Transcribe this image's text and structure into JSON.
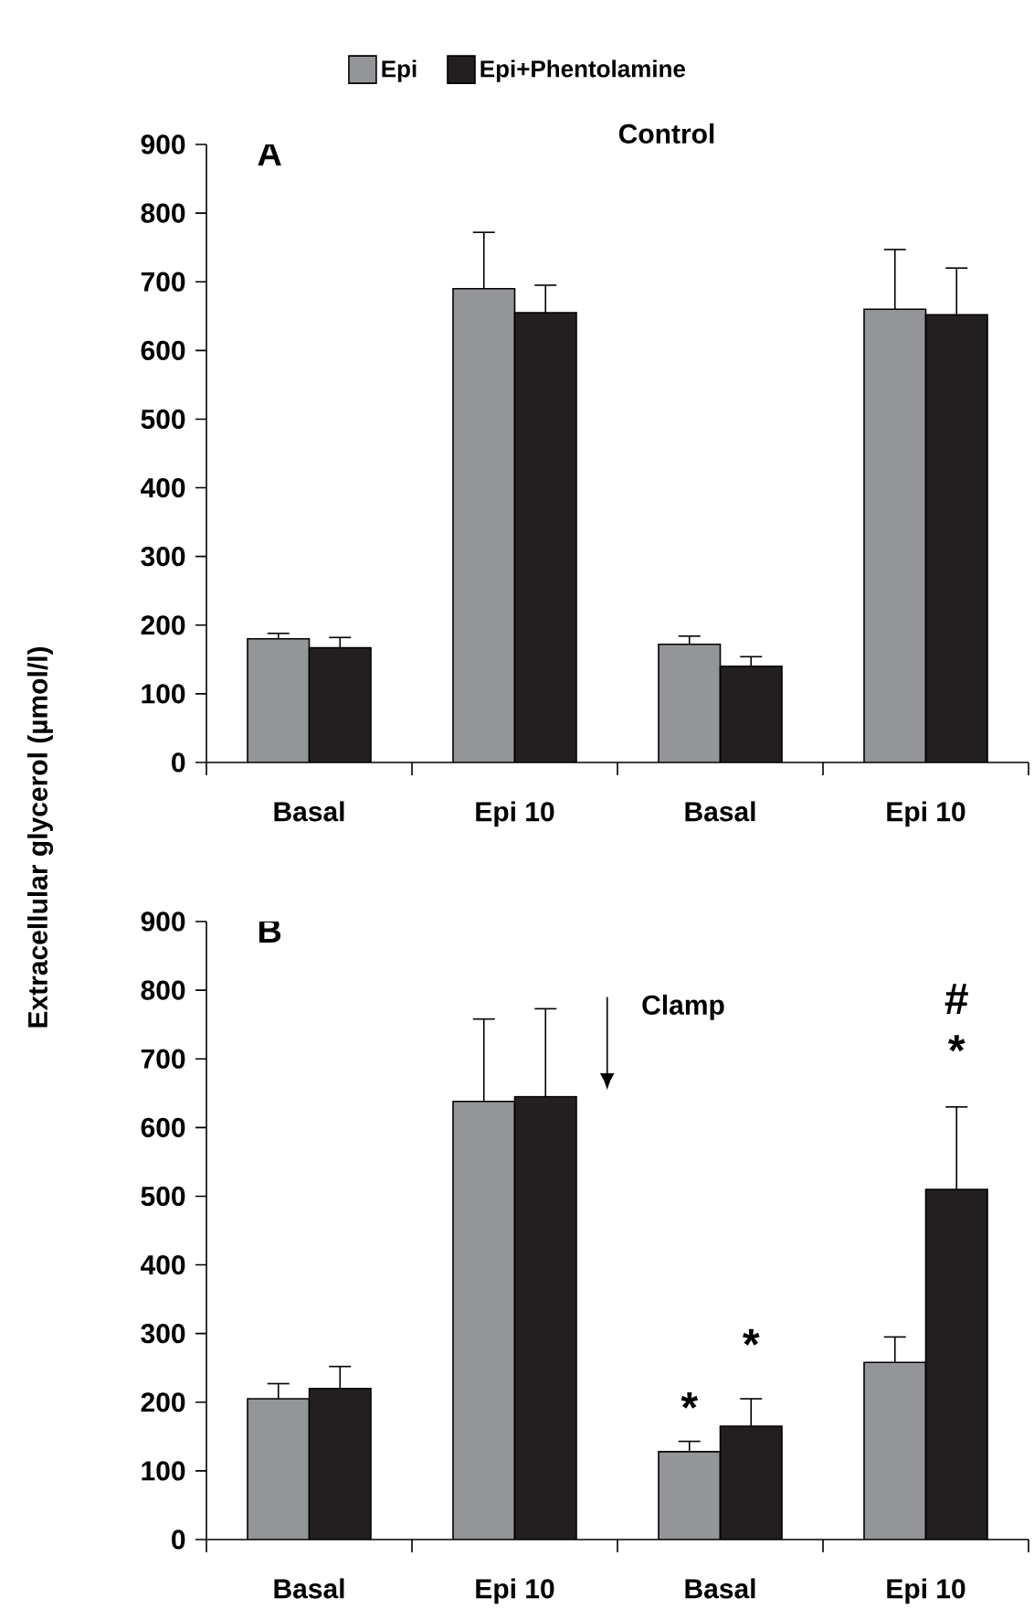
{
  "chart_data": [
    {
      "type": "bar",
      "title": "Control",
      "ylabel": "Extracellular glycerol (µmol/l)",
      "categories": [
        "Basal",
        "Epi 10",
        "Basal",
        "Epi 10"
      ],
      "series": [
        {
          "name": "Epi",
          "color": "#939598",
          "values": [
            180,
            690,
            172,
            660
          ],
          "errors": [
            8,
            82,
            12,
            87
          ]
        },
        {
          "name": "Epi+Phentolamine",
          "color": "#231f20",
          "values": [
            167,
            655,
            140,
            652
          ],
          "errors": [
            15,
            40,
            14,
            68
          ]
        }
      ],
      "ylim": [
        0,
        900
      ],
      "yticks": [
        0,
        100,
        200,
        300,
        400,
        500,
        600,
        700,
        800,
        900
      ],
      "legend": "top",
      "grid": false,
      "annotations": [
        "A"
      ]
    },
    {
      "type": "bar",
      "categories": [
        "Basal",
        "Epi 10",
        "Basal",
        "Epi 10"
      ],
      "series": [
        {
          "color": "#939598",
          "values": [
            205,
            638,
            128,
            258
          ],
          "errors": [
            22,
            120,
            15,
            37
          ]
        },
        {
          "color": "#231f20",
          "values": [
            220,
            645,
            165,
            510
          ],
          "errors": [
            32,
            128,
            40,
            120
          ]
        }
      ],
      "ylim": [
        0,
        900
      ],
      "yticks": [
        0,
        100,
        200,
        300,
        400,
        500,
        600,
        700,
        800,
        900
      ],
      "grid": false,
      "annotations": [
        "B",
        "Clamp",
        "*",
        "*",
        "#",
        "*"
      ]
    }
  ]
}
